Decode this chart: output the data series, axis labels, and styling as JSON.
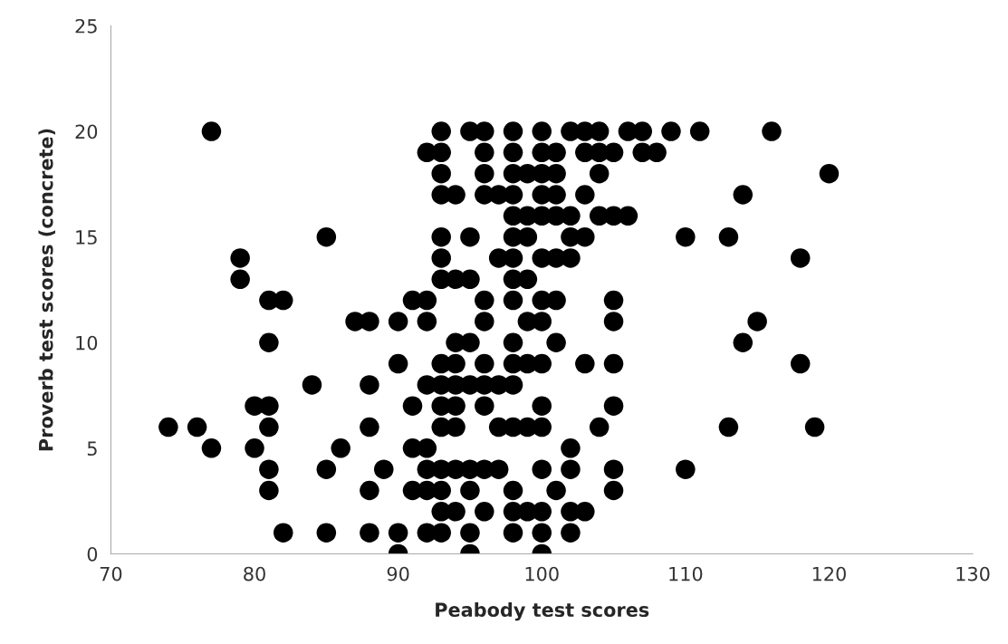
{
  "chart_data": {
    "type": "scatter",
    "xlabel": "Peabody test scores",
    "ylabel": "Proverb test scores (concrete)",
    "xlim": [
      70,
      130
    ],
    "xticks": [
      70,
      80,
      90,
      100,
      110,
      120,
      130
    ],
    "ylim": [
      0,
      25
    ],
    "yticks": [
      0,
      5,
      10,
      15,
      20,
      25
    ],
    "grid": false,
    "marker": "circle",
    "series": [
      {
        "color": "#000000",
        "x": [
          77,
          93,
          95,
          96,
          98,
          100,
          102,
          103,
          104,
          106,
          107,
          109,
          111,
          116,
          92,
          93,
          96,
          98,
          100,
          101,
          103,
          104,
          105,
          107,
          108,
          93,
          96,
          98,
          99,
          100,
          101,
          104,
          120,
          93,
          94,
          96,
          97,
          98,
          100,
          101,
          103,
          114,
          98,
          99,
          100,
          101,
          102,
          104,
          105,
          106,
          85,
          93,
          95,
          98,
          99,
          102,
          103,
          110,
          113,
          79,
          93,
          97,
          98,
          100,
          101,
          102,
          118,
          79,
          93,
          94,
          95,
          98,
          99,
          81,
          82,
          91,
          92,
          96,
          98,
          100,
          101,
          105,
          87,
          88,
          90,
          92,
          96,
          99,
          100,
          105,
          115,
          81,
          94,
          95,
          98,
          101,
          114,
          90,
          93,
          94,
          96,
          98,
          99,
          100,
          103,
          105,
          118,
          84,
          88,
          92,
          93,
          94,
          95,
          96,
          97,
          98,
          80,
          81,
          91,
          93,
          94,
          96,
          100,
          105,
          74,
          76,
          81,
          88,
          93,
          94,
          97,
          98,
          99,
          100,
          104,
          113,
          119,
          77,
          80,
          86,
          91,
          92,
          102,
          81,
          85,
          89,
          92,
          93,
          94,
          95,
          96,
          97,
          100,
          102,
          105,
          110,
          81,
          88,
          91,
          92,
          93,
          95,
          98,
          101,
          105,
          93,
          94,
          96,
          98,
          99,
          100,
          102,
          103,
          82,
          85,
          88,
          90,
          92,
          93,
          95,
          98,
          100,
          102,
          90,
          95,
          100
        ],
        "values": [
          20,
          20,
          20,
          20,
          20,
          20,
          20,
          20,
          20,
          20,
          20,
          20,
          20,
          20,
          19,
          19,
          19,
          19,
          19,
          19,
          19,
          19,
          19,
          19,
          19,
          18,
          18,
          18,
          18,
          18,
          18,
          18,
          18,
          17,
          17,
          17,
          17,
          17,
          17,
          17,
          17,
          17,
          16,
          16,
          16,
          16,
          16,
          16,
          16,
          16,
          15,
          15,
          15,
          15,
          15,
          15,
          15,
          15,
          15,
          14,
          14,
          14,
          14,
          14,
          14,
          14,
          14,
          13,
          13,
          13,
          13,
          13,
          13,
          12,
          12,
          12,
          12,
          12,
          12,
          12,
          12,
          12,
          11,
          11,
          11,
          11,
          11,
          11,
          11,
          11,
          11,
          10,
          10,
          10,
          10,
          10,
          10,
          9,
          9,
          9,
          9,
          9,
          9,
          9,
          9,
          9,
          9,
          8,
          8,
          8,
          8,
          8,
          8,
          8,
          8,
          8,
          7,
          7,
          7,
          7,
          7,
          7,
          7,
          7,
          6,
          6,
          6,
          6,
          6,
          6,
          6,
          6,
          6,
          6,
          6,
          6,
          6,
          5,
          5,
          5,
          5,
          5,
          5,
          4,
          4,
          4,
          4,
          4,
          4,
          4,
          4,
          4,
          4,
          4,
          4,
          4,
          3,
          3,
          3,
          3,
          3,
          3,
          3,
          3,
          3,
          2,
          2,
          2,
          2,
          2,
          2,
          2,
          2,
          1,
          1,
          1,
          1,
          1,
          1,
          1,
          1,
          1,
          1,
          0,
          0,
          0
        ]
      }
    ]
  }
}
